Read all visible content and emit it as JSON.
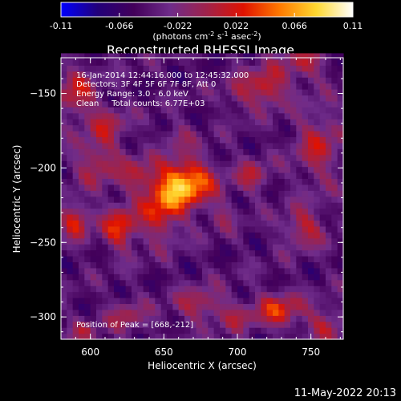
{
  "chart_data": {
    "type": "heatmap",
    "title": "Reconstructed RHESSI Image",
    "xlabel": "Heliocentric X (arcsec)",
    "ylabel": "Heliocentric Y (arcsec)",
    "xlim": [
      580,
      772
    ],
    "ylim": [
      -315,
      -126
    ],
    "xticks": [
      600,
      650,
      700,
      750
    ],
    "yticks": [
      -150,
      -200,
      -250,
      -300
    ],
    "colorbar": {
      "range": [
        -0.11,
        0.11
      ],
      "ticks": [
        "-0.11",
        "-0.066",
        "-0.022",
        "0.022",
        "0.066",
        "0.11"
      ],
      "unit_main": "(photons cm",
      "unit_sup1": "-2",
      "unit_mid1": " s",
      "unit_sup2": "-1",
      "unit_mid2": " asec",
      "unit_sup3": "-2",
      "unit_end": ")",
      "colors": [
        "#0000ff",
        "#22007a",
        "#43005a",
        "#6f2c8a",
        "#a0224a",
        "#e01200",
        "#ff7a00",
        "#ffd830",
        "#ffffff"
      ]
    },
    "annotations": [
      "16-Jan-2014 12:44:16.000 to 12:45:32.000",
      "Detectors: 3F 4F 5F 6F 7F 8F, Att 0",
      "Energy Range: 3.0 - 6.0 keV",
      "Clean     Total counts: 6.77E+03"
    ],
    "peak_label": "Position of Peak = [668,-212]",
    "sources": [
      {
        "x": 665,
        "y": -210,
        "sx": 13,
        "sy": 11,
        "amp": 0.118
      },
      {
        "x": 648,
        "y": -228,
        "sx": 10,
        "sy": 14,
        "amp": 0.07
      },
      {
        "x": 620,
        "y": -240,
        "sx": 8,
        "sy": 10,
        "amp": 0.075
      },
      {
        "x": 590,
        "y": -235,
        "sx": 7,
        "sy": 8,
        "amp": 0.07
      },
      {
        "x": 605,
        "y": -195,
        "sx": 11,
        "sy": 12,
        "amp": 0.05
      },
      {
        "x": 632,
        "y": -205,
        "sx": 8,
        "sy": 9,
        "amp": 0.04
      },
      {
        "x": 590,
        "y": -150,
        "sx": 10,
        "sy": 12,
        "amp": 0.055
      },
      {
        "x": 612,
        "y": -170,
        "sx": 9,
        "sy": 9,
        "amp": 0.04
      },
      {
        "x": 720,
        "y": -145,
        "sx": 9,
        "sy": 9,
        "amp": 0.07
      },
      {
        "x": 745,
        "y": -130,
        "sx": 10,
        "sy": 8,
        "amp": 0.05
      },
      {
        "x": 700,
        "y": -150,
        "sx": 7,
        "sy": 8,
        "amp": 0.035
      },
      {
        "x": 755,
        "y": -185,
        "sx": 11,
        "sy": 18,
        "amp": 0.05
      },
      {
        "x": 710,
        "y": -205,
        "sx": 8,
        "sy": 8,
        "amp": 0.045
      },
      {
        "x": 745,
        "y": -240,
        "sx": 10,
        "sy": 9,
        "amp": 0.055
      },
      {
        "x": 728,
        "y": -295,
        "sx": 11,
        "sy": 8,
        "amp": 0.07
      },
      {
        "x": 760,
        "y": -305,
        "sx": 9,
        "sy": 8,
        "amp": 0.05
      },
      {
        "x": 675,
        "y": -292,
        "sx": 12,
        "sy": 8,
        "amp": 0.05
      },
      {
        "x": 700,
        "y": -300,
        "sx": 8,
        "sy": 7,
        "amp": 0.035
      },
      {
        "x": 625,
        "y": -300,
        "sx": 10,
        "sy": 8,
        "amp": 0.04
      },
      {
        "x": 595,
        "y": -310,
        "sx": 7,
        "sy": 6,
        "amp": 0.035
      },
      {
        "x": 690,
        "y": -232,
        "sx": 6,
        "sy": 7,
        "amp": 0.03
      },
      {
        "x": 660,
        "y": -178,
        "sx": 8,
        "sy": 6,
        "amp": 0.03
      }
    ],
    "background_level": -0.045
  },
  "footer": {
    "date": "11-May-2022 20:13"
  }
}
